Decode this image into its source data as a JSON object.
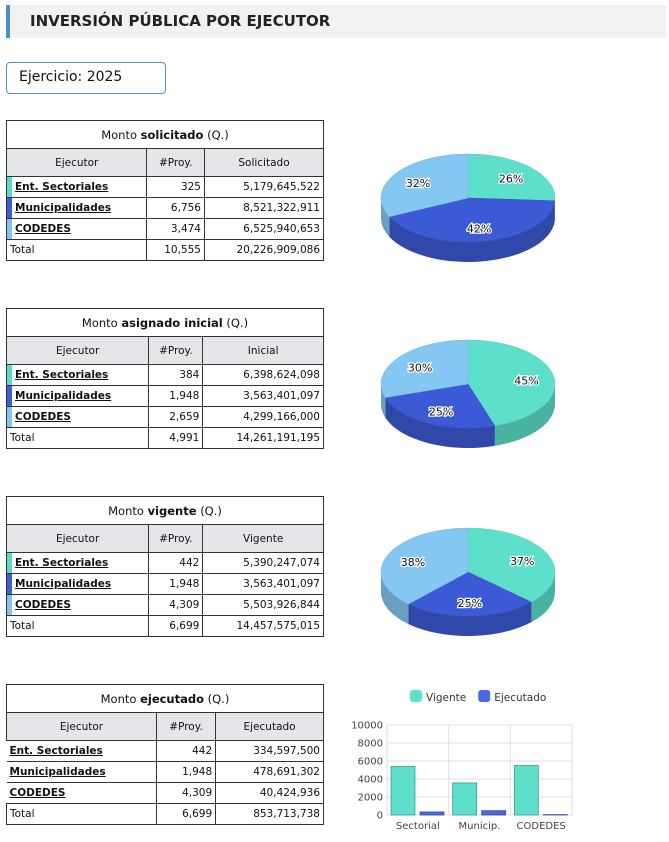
{
  "header": {
    "title": "INVERSIÓN PÚBLICA POR EJECUTOR"
  },
  "filter": {
    "label": "Ejercicio: 2025"
  },
  "tables": [
    {
      "title": [
        "Monto",
        "solicitado",
        "(Q.)"
      ],
      "columns": [
        "Ejecutor",
        "#Proy.",
        "Solicitado"
      ],
      "row_colors": [
        "#5bdcc9",
        "#3f5bd9",
        "#84c5ee"
      ],
      "rows": [
        [
          "Ent. Sectoriales",
          "325",
          "5,179,645,522"
        ],
        [
          "Municipalidades",
          "6,756",
          "8,521,322,911"
        ],
        [
          "CODEDES",
          "3,474",
          "6,525,940,653"
        ]
      ],
      "total": [
        "Total",
        "10,555",
        "20,226,909,086"
      ]
    },
    {
      "title": [
        "Monto",
        "asignado inicial",
        "(Q.)"
      ],
      "columns": [
        "Ejecutor",
        "#Proy.",
        "Inicial"
      ],
      "row_colors": [
        "#5bdcc9",
        "#3f5bd9",
        "#84c5ee"
      ],
      "rows": [
        [
          "Ent. Sectoriales",
          "384",
          "6,398,624,098"
        ],
        [
          "Municipalidades",
          "1,948",
          "3,563,401,097"
        ],
        [
          "CODEDES",
          "2,659",
          "4,299,166,000"
        ]
      ],
      "total": [
        "Total",
        "4,991",
        "14,261,191,195"
      ]
    },
    {
      "title": [
        "Monto",
        "vigente",
        "(Q.)"
      ],
      "columns": [
        "Ejecutor",
        "#Proy.",
        "Vigente"
      ],
      "row_colors": [
        "#5bdcc9",
        "#3f5bd9",
        "#84c5ee"
      ],
      "rows": [
        [
          "Ent. Sectoriales",
          "442",
          "5,390,247,074"
        ],
        [
          "Municipalidades",
          "1,948",
          "3,563,401,097"
        ],
        [
          "CODEDES",
          "4,309",
          "5,503,926,844"
        ]
      ],
      "total": [
        "Total",
        "6,699",
        "14,457,575,015"
      ]
    },
    {
      "title": [
        "Monto",
        "ejecutado",
        "(Q.)"
      ],
      "columns": [
        "Ejecutor",
        "#Proy.",
        "Ejecutado"
      ],
      "rows": [
        [
          "Ent. Sectoriales",
          "442",
          "334,597,500"
        ],
        [
          "Municipalidades",
          "1,948",
          "478,691,302"
        ],
        [
          "CODEDES",
          "4,309",
          "40,424,936"
        ]
      ],
      "total": [
        "Total",
        "6,699",
        "853,713,738"
      ]
    }
  ],
  "chart_data": [
    {
      "type": "pie",
      "values": [
        26,
        42,
        32
      ],
      "value_labels": [
        "26%",
        "42%",
        "32%"
      ],
      "colors": [
        "#5ddfcc",
        "#3d5ad6",
        "#84c7f2"
      ]
    },
    {
      "type": "pie",
      "values": [
        45,
        25,
        30
      ],
      "value_labels": [
        "45%",
        "25%",
        "30%"
      ],
      "colors": [
        "#5ddfcc",
        "#3d5ad6",
        "#84c7f2"
      ]
    },
    {
      "type": "pie",
      "values": [
        37,
        25,
        38
      ],
      "value_labels": [
        "37%",
        "25%",
        "38%"
      ],
      "colors": [
        "#5ddfcc",
        "#3d5ad6",
        "#84c7f2"
      ]
    },
    {
      "type": "bar",
      "categories": [
        "Sectorial",
        "Municip.",
        "CODEDES"
      ],
      "series": [
        {
          "name": "Vigente",
          "color": "#5ddfcc",
          "values": [
            5390,
            3563,
            5504
          ]
        },
        {
          "name": "Ejecutado",
          "color": "#4a6ae0",
          "values": [
            335,
            479,
            40
          ]
        }
      ],
      "ylim": [
        0,
        10000
      ],
      "yticks": [
        0,
        2000,
        4000,
        6000,
        8000,
        10000
      ],
      "grid": true,
      "legend": "top"
    }
  ]
}
